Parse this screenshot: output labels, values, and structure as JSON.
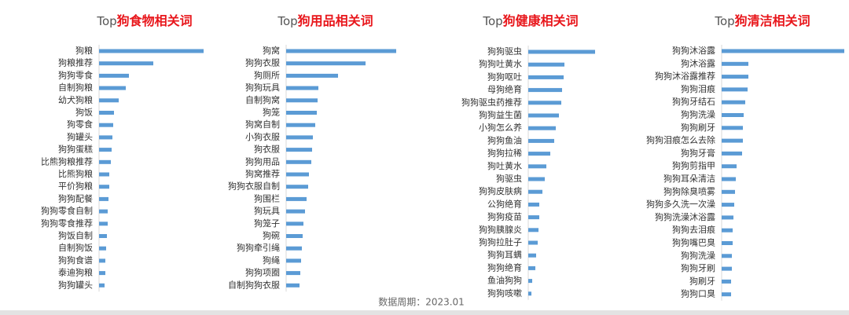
{
  "chart_data": [
    {
      "type": "bar",
      "orientation": "horizontal",
      "title_prefix": "Top",
      "title": "狗食物相关词",
      "color": "#5b9bd5",
      "xlim": [
        0,
        160
      ],
      "categories": [
        "狗粮",
        "狗粮推荐",
        "狗狗零食",
        "自制狗粮",
        "幼犬狗粮",
        "狗饭",
        "狗零食",
        "狗罐头",
        "狗狗蛋糕",
        "比熊狗粮推荐",
        "比熊狗粮",
        "平价狗粮",
        "狗狗配餐",
        "狗狗零食自制",
        "狗狗零食推荐",
        "狗饭自制",
        "自制狗饭",
        "狗狗食谱",
        "泰迪狗粮",
        "狗狗罐头"
      ],
      "values": [
        133,
        69,
        38,
        34,
        25,
        19,
        18,
        17,
        16,
        15,
        13,
        13,
        12,
        11,
        11,
        10,
        9,
        8,
        8,
        7
      ]
    },
    {
      "type": "bar",
      "orientation": "horizontal",
      "title_prefix": "Top",
      "title": "狗用品相关词",
      "color": "#5b9bd5",
      "xlim": [
        0,
        160
      ],
      "categories": [
        "狗窝",
        "狗狗衣服",
        "狗厕所",
        "狗狗玩具",
        "自制狗窝",
        "狗笼",
        "狗窝自制",
        "小狗衣服",
        "狗衣服",
        "狗狗用品",
        "狗窝推荐",
        "狗狗衣服自制",
        "狗围栏",
        "狗玩具",
        "狗笼子",
        "狗碗",
        "狗狗牵引绳",
        "狗绳",
        "狗狗项圈",
        "自制狗狗衣服"
      ],
      "values": [
        140,
        101,
        66,
        41,
        40,
        39,
        37,
        34,
        33,
        32,
        29,
        28,
        26,
        24,
        22,
        21,
        20,
        19,
        18,
        17
      ]
    },
    {
      "type": "bar",
      "orientation": "horizontal",
      "title_prefix": "Top",
      "title": "狗健康相关词",
      "color": "#5b9bd5",
      "xlim": [
        0,
        160
      ],
      "categories": [
        "狗狗驱虫",
        "狗狗吐黄水",
        "狗狗呕吐",
        "母狗绝育",
        "狗狗驱虫药推荐",
        "狗狗益生菌",
        "小狗怎么养",
        "狗狗鱼油",
        "狗狗拉稀",
        "狗吐黄水",
        "狗驱虫",
        "狗狗皮肤病",
        "公狗绝育",
        "狗狗疫苗",
        "狗狗胰腺炎",
        "狗狗拉肚子",
        "狗狗耳螨",
        "狗狗绝育",
        "鱼油狗狗",
        "狗狗咳嗽"
      ],
      "values": [
        85,
        46,
        45,
        43,
        42,
        39,
        35,
        33,
        28,
        23,
        21,
        18,
        14,
        14,
        13,
        12,
        10,
        9,
        5,
        4
      ]
    },
    {
      "type": "bar",
      "orientation": "horizontal",
      "title_prefix": "Top",
      "title": "狗清洁相关词",
      "color": "#5b9bd5",
      "xlim": [
        0,
        160
      ],
      "categories": [
        "狗狗沐浴露",
        "狗沐浴露",
        "狗狗沐浴露推荐",
        "狗狗泪痕",
        "狗狗牙结石",
        "狗狗洗澡",
        "狗狗刷牙",
        "狗狗泪痕怎么去除",
        "狗狗牙膏",
        "狗狗剪指甲",
        "狗狗耳朵清洁",
        "狗狗除臭喷雾",
        "狗狗多久洗一次澡",
        "狗狗洗澡沐浴露",
        "狗狗去泪痕",
        "狗狗嘴巴臭",
        "狗狗洗澡",
        "狗狗牙刷",
        "狗刷牙",
        "狗狗口臭"
      ],
      "values": [
        156,
        34,
        34,
        33,
        30,
        28,
        27,
        27,
        26,
        19,
        18,
        17,
        16,
        15,
        14,
        14,
        13,
        13,
        12,
        12
      ]
    }
  ],
  "footer": "数据周期：2023.01"
}
